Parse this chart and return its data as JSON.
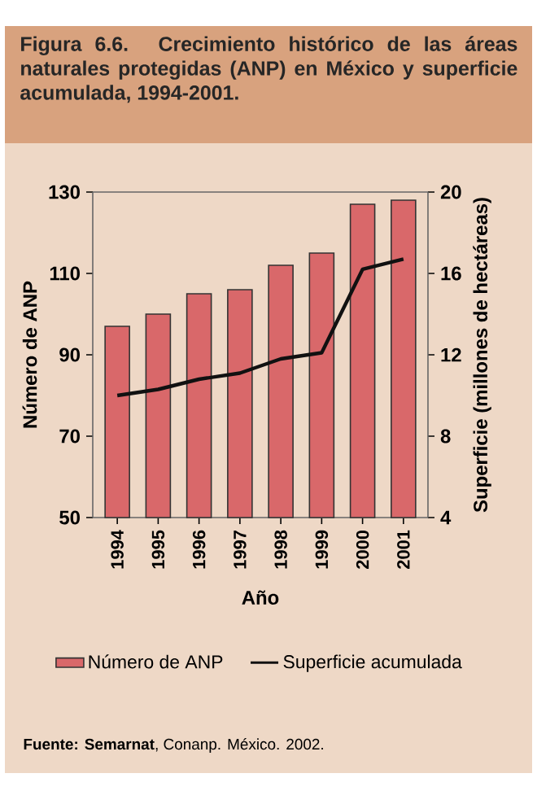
{
  "chart_data": {
    "type": "bar",
    "title": "Figura 6.6. Crecimiento histórico de las áreas naturales protegidas (ANP) en México y superficie acumulada, 1994-2001.",
    "xlabel": "Año",
    "ylabel": "Número de ANP",
    "y2label": "Superficie (millones de hectáreas)",
    "categories": [
      "1994",
      "1995",
      "1996",
      "1997",
      "1998",
      "1999",
      "2000",
      "2001"
    ],
    "series": [
      {
        "name": "Número de ANP",
        "color": "#d9686a",
        "values": [
          97,
          100,
          105,
          106,
          112,
          115,
          127,
          128
        ]
      },
      {
        "name": "Superficie acumulada",
        "type": "line",
        "axis": "y2",
        "color": "#111111",
        "values": [
          10.0,
          10.3,
          10.8,
          11.1,
          11.8,
          12.1,
          16.2,
          16.7
        ]
      }
    ],
    "ylim": [
      50,
      130
    ],
    "yticks": [
      50,
      70,
      90,
      110,
      130
    ],
    "y2lim": [
      4,
      20
    ],
    "y2ticks": [
      4,
      8,
      12,
      16,
      20
    ],
    "legend": "bottom",
    "annotations": [
      "**Fuente: Semarnat**, Conanp. México. 2002."
    ]
  }
}
